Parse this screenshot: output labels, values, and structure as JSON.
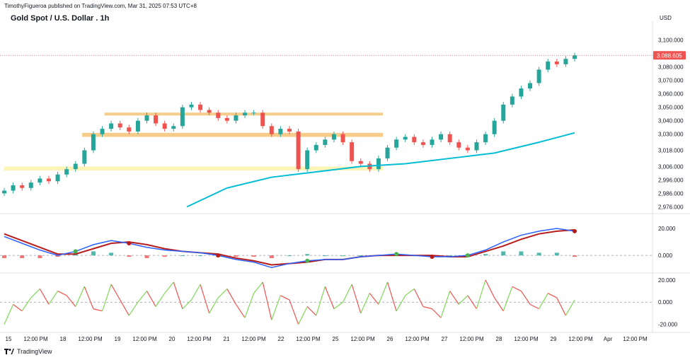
{
  "header": {
    "author": "TimothyFigueroa",
    "published_text": "published on TradingView.com, Mar 31, 2025 07:53 UTC+8"
  },
  "title": "Gold Spot / U.S. Dollar . 1h",
  "currency": "USD",
  "footer": {
    "brand": "TradingView"
  },
  "colors": {
    "candle_up": "#26a69a",
    "candle_down": "#ef5350",
    "ema": "#00bcd4",
    "resistance_zone": "#f5c77e",
    "support_zone": "#fff3b0",
    "price_line": "#ef5350",
    "macd_line": "#2962ff",
    "signal_line": "#b71c1c",
    "hist_pos": "#26a69a",
    "hist_neg": "#ef5350",
    "osc_up": "#7ed957",
    "osc_down": "#ef5350"
  },
  "chart_data": [
    {
      "type": "line",
      "name": "price",
      "title": "Gold Spot / U.S. Dollar . 1h",
      "ylim": [
        2972,
        3114
      ],
      "y_ticks": [
        "3,100.000",
        "3,088.605",
        "3,080.000",
        "3,070.000",
        "3,060.000",
        "3,050.000",
        "3,040.000",
        "3,030.000",
        "3,018.000",
        "3,006.000",
        "2,996.000",
        "2,986.000",
        "2,976.000"
      ],
      "y_tick_values": [
        3100,
        3088.605,
        3080,
        3070,
        3060,
        3050,
        3040,
        3030,
        3018,
        3006,
        2996,
        2986,
        2976
      ],
      "last_price": 3088.605,
      "last_price_label": "3,088.605",
      "x": [
        0,
        4,
        8,
        12,
        16,
        20,
        24,
        28,
        32,
        36,
        40,
        44,
        48,
        52,
        56,
        60,
        64,
        68,
        72,
        76,
        80,
        84,
        88,
        92,
        96,
        100,
        104,
        108,
        112,
        116,
        120,
        124,
        128,
        132,
        136,
        140,
        144,
        148,
        152,
        156,
        160,
        164,
        168,
        172,
        176,
        180,
        184,
        188,
        192,
        196,
        200,
        204,
        208,
        212,
        216,
        220,
        224,
        228,
        232,
        236,
        240,
        244,
        248,
        252,
        256
      ],
      "close": [
        2988,
        2992,
        2990,
        2994,
        2997,
        2995,
        3000,
        3004,
        3008,
        3018,
        3030,
        3034,
        3038,
        3035,
        3032,
        3040,
        3044,
        3038,
        3034,
        3036,
        3050,
        3052,
        3048,
        3046,
        3042,
        3040,
        3044,
        3046,
        3046,
        3036,
        3030,
        3034,
        3032,
        3004,
        3018,
        3022,
        3026,
        3030,
        3024,
        3010,
        3008,
        3004,
        3012,
        3020,
        3026,
        3028,
        3024,
        3022,
        3026,
        3030,
        3024,
        3020,
        3018,
        3024,
        3030,
        3040,
        3052,
        3058,
        3064,
        3068,
        3078,
        3084,
        3082,
        3086,
        3088.605
      ],
      "ema_x": [
        82,
        100,
        120,
        140,
        160,
        180,
        200,
        220,
        240,
        256
      ],
      "ema": [
        2976,
        2990,
        2998,
        3002,
        3006,
        3008,
        3012,
        3016,
        3024,
        3031
      ]
    },
    {
      "type": "line",
      "name": "macd",
      "ylim": [
        -12,
        30
      ],
      "y_ticks": [
        "20.000",
        "0.000"
      ],
      "y_tick_values": [
        20,
        0
      ],
      "x": [
        0,
        8,
        16,
        24,
        32,
        40,
        48,
        56,
        64,
        72,
        80,
        88,
        96,
        104,
        112,
        120,
        128,
        136,
        144,
        152,
        160,
        168,
        176,
        184,
        192,
        200,
        208,
        216,
        224,
        232,
        240,
        248,
        256
      ],
      "macd": [
        14,
        9,
        4,
        0,
        3,
        8,
        11,
        9,
        6,
        4,
        3,
        2,
        0,
        -3,
        -5,
        -9,
        -6,
        -4,
        -3,
        -3,
        -1,
        0,
        1,
        0,
        -1,
        -1,
        0,
        4,
        10,
        15,
        18,
        20,
        18
      ],
      "signal": [
        16,
        11,
        6,
        1,
        1,
        5,
        9,
        10,
        8,
        5,
        3,
        2,
        1,
        -2,
        -4,
        -7,
        -6,
        -5,
        -3,
        -3,
        -1,
        0,
        0,
        0,
        0,
        -1,
        -1,
        3,
        7,
        12,
        16,
        18,
        19
      ],
      "histogram": [
        -2,
        -2,
        -2,
        -1,
        2,
        3,
        2,
        -1,
        -2,
        -1,
        0,
        0,
        -1,
        -1,
        -1,
        -2,
        0,
        1,
        0,
        0,
        0,
        0,
        1,
        0,
        -1,
        0,
        1,
        1,
        3,
        3,
        2,
        2,
        -1
      ]
    },
    {
      "type": "line",
      "name": "oscillator",
      "ylim": [
        -26,
        25
      ],
      "y_ticks": [
        "20.000",
        "0.000",
        "-20.000"
      ],
      "y_tick_values": [
        20,
        0,
        -20
      ],
      "x": [
        0,
        4,
        8,
        12,
        16,
        20,
        24,
        28,
        32,
        36,
        40,
        44,
        48,
        52,
        56,
        60,
        64,
        68,
        72,
        76,
        80,
        84,
        88,
        92,
        96,
        100,
        104,
        108,
        112,
        116,
        120,
        124,
        128,
        132,
        136,
        140,
        144,
        148,
        152,
        156,
        160,
        164,
        168,
        172,
        176,
        180,
        184,
        188,
        192,
        196,
        200,
        204,
        208,
        212,
        216,
        220,
        224,
        228,
        232,
        236,
        240,
        244,
        248,
        252,
        256
      ],
      "values": [
        -20,
        -2,
        -8,
        4,
        12,
        -2,
        10,
        6,
        -4,
        14,
        -6,
        -8,
        16,
        2,
        -12,
        0,
        10,
        -4,
        8,
        18,
        -6,
        2,
        16,
        -10,
        4,
        12,
        -2,
        -14,
        8,
        18,
        -16,
        6,
        2,
        -20,
        -4,
        -12,
        14,
        -6,
        0,
        16,
        -10,
        8,
        -2,
        18,
        -8,
        6,
        12,
        -4,
        -6,
        -14,
        10,
        -2,
        6,
        -6,
        20,
        4,
        -8,
        14,
        10,
        -2,
        -6,
        8,
        4,
        -12,
        2
      ]
    }
  ],
  "x_axis_labels": [
    "15",
    "12:00 PM",
    "18",
    "12:00 PM",
    "19",
    "12:00 PM",
    "20",
    "12:00 PM",
    "21",
    "12:00 PM",
    "22",
    "12:00 PM",
    "25",
    "12:00 PM",
    "26",
    "12:00 PM",
    "27",
    "12:00 PM",
    "28",
    "12:00 PM",
    "29",
    "12:00 PM",
    "Apr",
    "12:00 PM"
  ],
  "zones": [
    {
      "name": "upper-resistance",
      "low": 3044,
      "high": 3046,
      "x0": 45,
      "x1": 170
    },
    {
      "name": "mid-resistance",
      "low": 3028,
      "high": 3031,
      "x0": 35,
      "x1": 170
    },
    {
      "name": "support",
      "low": 3003,
      "high": 3006,
      "x0": 0,
      "x1": 170
    }
  ]
}
